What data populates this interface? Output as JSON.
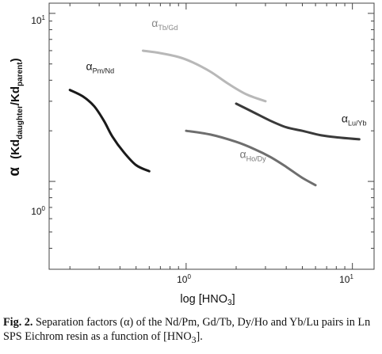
{
  "chart_data": {
    "type": "line",
    "xscale": "log",
    "yscale": "log",
    "xlim": [
      0.15,
      13.5
    ],
    "ylim": [
      0.3,
      11.5
    ],
    "x_ticks": [
      {
        "value": 1,
        "label": "10",
        "sup": "0"
      },
      {
        "value": 10,
        "label": "10",
        "sup": "1"
      }
    ],
    "y_ticks": [
      {
        "value": 1,
        "label": "10",
        "sup": "0"
      },
      {
        "value": 10,
        "label": "10",
        "sup": "1"
      }
    ],
    "xlabel": {
      "pre": "log [HNO",
      "sub": "3",
      "post": "]"
    },
    "ylabel": {
      "alpha": "α",
      "open": "(Kd",
      "sub1": "daughter",
      "mid": "/Kd",
      "sub2": "parent",
      "close": ")"
    },
    "series": [
      {
        "label": "α",
        "label_sub": "Pm/Nd",
        "color": "#1a1a1a",
        "width": 3,
        "x": [
          0.2,
          0.24,
          0.28,
          0.32,
          0.36,
          0.42,
          0.5,
          0.6
        ],
        "y": [
          3.5,
          3.2,
          2.8,
          2.3,
          1.85,
          1.5,
          1.25,
          1.15
        ]
      },
      {
        "label": "α",
        "label_sub": "Tb/Gd",
        "color": "#b8b8b8",
        "width": 3,
        "x": [
          0.55,
          0.7,
          0.9,
          1.1,
          1.4,
          1.8,
          2.3,
          3.0
        ],
        "y": [
          6.0,
          5.8,
          5.5,
          5.1,
          4.5,
          3.8,
          3.3,
          3.0
        ]
      },
      {
        "label": "α",
        "label_sub": "Lu/Yb",
        "color": "#3a3a3a",
        "width": 3,
        "x": [
          2.0,
          2.5,
          3.2,
          4.0,
          5.0,
          6.5,
          8.5,
          11.0
        ],
        "y": [
          2.9,
          2.6,
          2.3,
          2.1,
          2.0,
          1.88,
          1.82,
          1.78
        ]
      },
      {
        "label": "α",
        "label_sub": "Ho/Dy",
        "color": "#6e6e6e",
        "width": 3,
        "x": [
          1.0,
          1.4,
          2.0,
          2.6,
          3.2,
          4.0,
          5.0,
          6.0
        ],
        "y": [
          2.0,
          1.9,
          1.72,
          1.55,
          1.4,
          1.22,
          1.05,
          0.95
        ]
      }
    ]
  },
  "caption": {
    "fig": "Fig. 2.",
    "text": "Separation factors (α) of the Nd/Pm, Gd/Tb, Dy/Ho and Yb/Lu pairs in Ln SPS Eichrom resin as a function of [HNO",
    "sub": "3",
    "end": "]."
  }
}
